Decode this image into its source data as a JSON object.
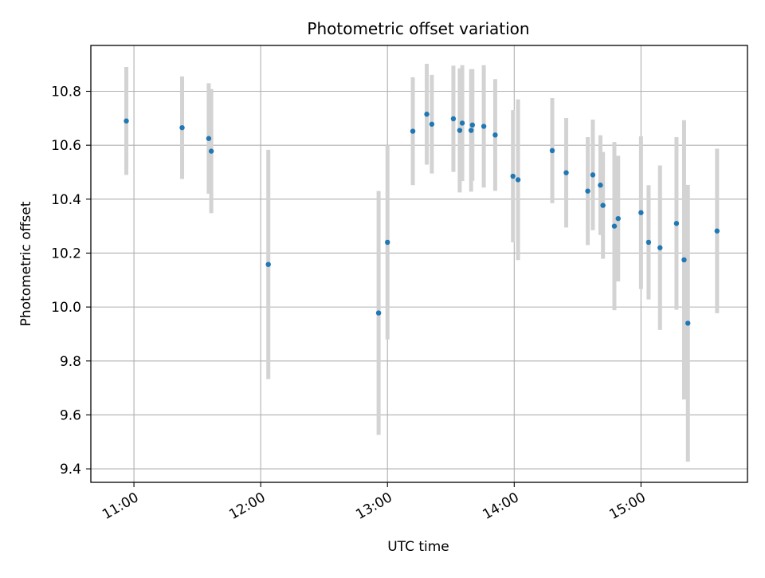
{
  "chart_data": {
    "type": "scatter",
    "title": "Photometric offset variation",
    "xlabel": "UTC time",
    "ylabel": "Photometric offset",
    "grid": true,
    "x_unit": "hours UTC (decimal)",
    "xlim": [
      10.66,
      15.84
    ],
    "ylim": [
      9.35,
      10.97
    ],
    "x_ticks": [
      {
        "value": 11,
        "label": "11:00"
      },
      {
        "value": 12,
        "label": "12:00"
      },
      {
        "value": 13,
        "label": "13:00"
      },
      {
        "value": 14,
        "label": "14:00"
      },
      {
        "value": 15,
        "label": "15:00"
      }
    ],
    "y_ticks": [
      {
        "value": 9.4,
        "label": "9.4"
      },
      {
        "value": 9.6,
        "label": "9.6"
      },
      {
        "value": 9.8,
        "label": "9.8"
      },
      {
        "value": 10.0,
        "label": "10.0"
      },
      {
        "value": 10.2,
        "label": "10.2"
      },
      {
        "value": 10.4,
        "label": "10.4"
      },
      {
        "value": 10.6,
        "label": "10.6"
      },
      {
        "value": 10.8,
        "label": "10.8"
      }
    ],
    "colors": {
      "point": "#1f77b4",
      "errorbar": "#d3d3d3",
      "grid": "#b0b0b0",
      "axis": "#000000"
    },
    "points": [
      {
        "x": 10.94,
        "y": 10.69,
        "err": 0.2
      },
      {
        "x": 11.38,
        "y": 10.665,
        "err": 0.19
      },
      {
        "x": 11.59,
        "y": 10.625,
        "err": 0.205
      },
      {
        "x": 11.61,
        "y": 10.578,
        "err": 0.23
      },
      {
        "x": 12.06,
        "y": 10.158,
        "err": 0.425
      },
      {
        "x": 12.93,
        "y": 9.978,
        "err": 0.452
      },
      {
        "x": 13.0,
        "y": 10.24,
        "err": 0.36
      },
      {
        "x": 13.2,
        "y": 10.652,
        "err": 0.2
      },
      {
        "x": 13.31,
        "y": 10.715,
        "err": 0.187
      },
      {
        "x": 13.35,
        "y": 10.678,
        "err": 0.183
      },
      {
        "x": 13.52,
        "y": 10.698,
        "err": 0.197
      },
      {
        "x": 13.57,
        "y": 10.655,
        "err": 0.23
      },
      {
        "x": 13.59,
        "y": 10.682,
        "err": 0.215
      },
      {
        "x": 13.66,
        "y": 10.655,
        "err": 0.227
      },
      {
        "x": 13.67,
        "y": 10.675,
        "err": 0.207
      },
      {
        "x": 13.76,
        "y": 10.67,
        "err": 0.227
      },
      {
        "x": 13.85,
        "y": 10.638,
        "err": 0.207
      },
      {
        "x": 13.99,
        "y": 10.485,
        "err": 0.245
      },
      {
        "x": 14.03,
        "y": 10.472,
        "err": 0.298
      },
      {
        "x": 14.3,
        "y": 10.58,
        "err": 0.195
      },
      {
        "x": 14.41,
        "y": 10.498,
        "err": 0.203
      },
      {
        "x": 14.58,
        "y": 10.43,
        "err": 0.2
      },
      {
        "x": 14.62,
        "y": 10.49,
        "err": 0.205
      },
      {
        "x": 14.68,
        "y": 10.452,
        "err": 0.185
      },
      {
        "x": 14.7,
        "y": 10.377,
        "err": 0.198
      },
      {
        "x": 14.79,
        "y": 10.3,
        "err": 0.312
      },
      {
        "x": 14.82,
        "y": 10.328,
        "err": 0.233
      },
      {
        "x": 15.0,
        "y": 10.35,
        "err": 0.283
      },
      {
        "x": 15.06,
        "y": 10.24,
        "err": 0.212
      },
      {
        "x": 15.15,
        "y": 10.22,
        "err": 0.305
      },
      {
        "x": 15.28,
        "y": 10.31,
        "err": 0.32
      },
      {
        "x": 15.34,
        "y": 10.175,
        "err": 0.518
      },
      {
        "x": 15.37,
        "y": 9.94,
        "err": 0.513
      },
      {
        "x": 15.6,
        "y": 10.282,
        "err": 0.305
      }
    ]
  }
}
